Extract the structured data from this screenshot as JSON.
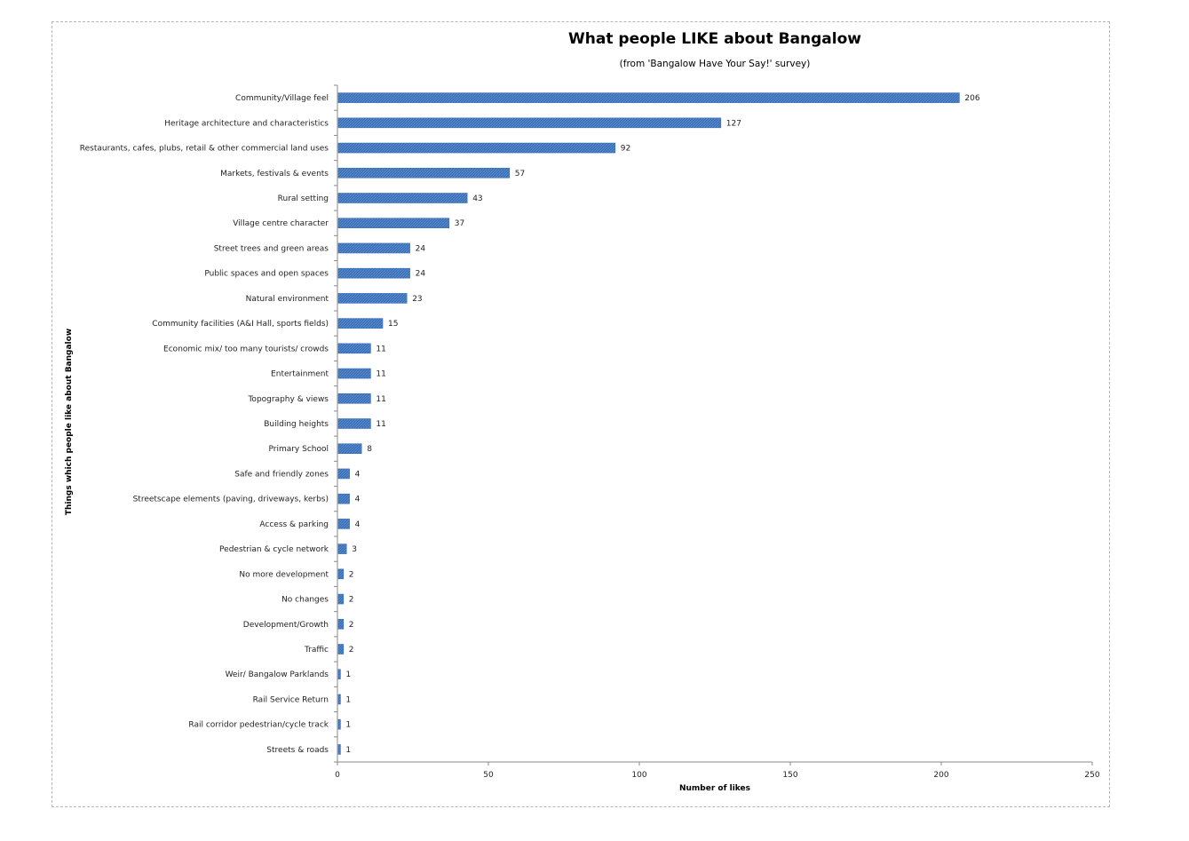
{
  "chart_data": {
    "type": "bar",
    "orientation": "horizontal",
    "title": "What people LIKE about Bangalow",
    "subtitle": "(from 'Bangalow Have Your Say!' survey)",
    "xlabel": "Number of likes",
    "ylabel": "Things which people like about Bangalow",
    "xlim": [
      0,
      250
    ],
    "xticks": [
      0,
      50,
      100,
      150,
      200,
      250
    ],
    "grid": false,
    "legend": "none",
    "bar_color": "#3a6fb8",
    "categories": [
      "Community/Village feel",
      "Heritage architecture and characteristics",
      "Restaurants, cafes, plubs, retail & other commercial land uses",
      "Markets, festivals & events",
      "Rural setting",
      "Village centre character",
      "Street trees and green areas",
      "Public spaces and open spaces",
      "Natural environment",
      "Community facilities (A&I Hall, sports fields)",
      "Economic mix/ too many tourists/ crowds",
      "Entertainment",
      "Topography & views",
      "Building heights",
      "Primary School",
      "Safe and friendly zones",
      "Streetscape elements (paving, driveways, kerbs)",
      "Access & parking",
      "Pedestrian & cycle network",
      "No more development",
      "No changes",
      "Development/Growth",
      "Traffic",
      "Weir/ Bangalow Parklands",
      "Rail Service Return",
      "Rail corridor pedestrian/cycle track",
      "Streets & roads"
    ],
    "values": [
      206,
      127,
      92,
      57,
      43,
      37,
      24,
      24,
      23,
      15,
      11,
      11,
      11,
      11,
      8,
      4,
      4,
      4,
      3,
      2,
      2,
      2,
      2,
      1,
      1,
      1,
      1
    ]
  }
}
